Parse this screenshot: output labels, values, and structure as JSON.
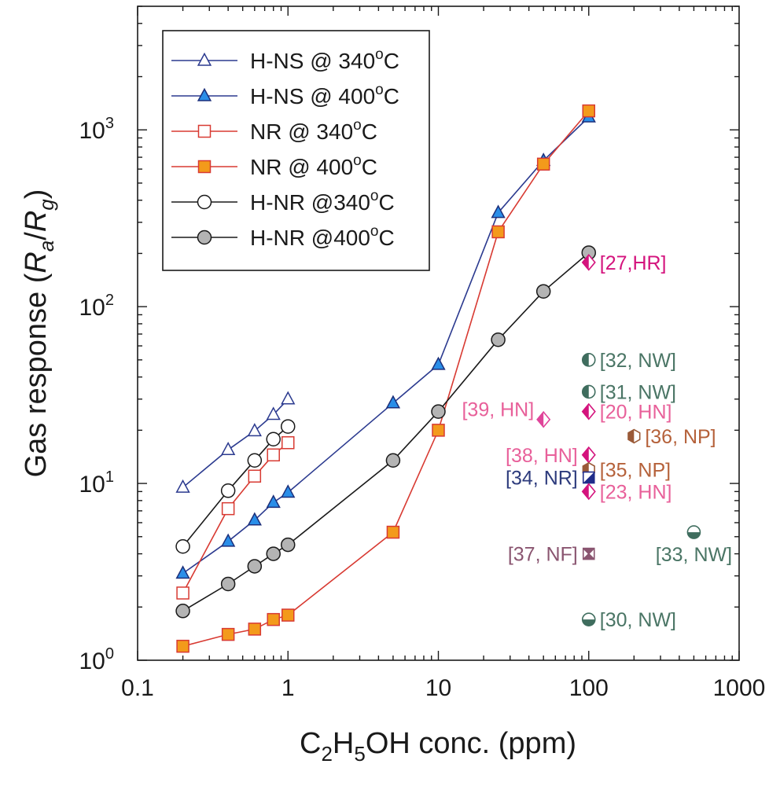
{
  "chart_data": {
    "type": "scatter",
    "xscale": "log",
    "yscale": "log",
    "xlim": [
      0.1,
      1000
    ],
    "ylim": [
      1,
      5000
    ],
    "xlabel": {
      "base": "C",
      "s1": "2",
      "mid": "H",
      "s2": "5",
      "end": "OH conc. (ppm)"
    },
    "ylabel": {
      "pre": "Gas response (",
      "a": "R",
      "asub": "a",
      "slash": "/",
      "b": "R",
      "bsub": "g",
      "post": ")"
    },
    "xticks": [
      {
        "value": 0.1,
        "label": "0.1"
      },
      {
        "value": 1,
        "label": "1"
      },
      {
        "value": 10,
        "label": "10"
      },
      {
        "value": 100,
        "label": "100"
      },
      {
        "value": 1000,
        "label": "1000"
      }
    ],
    "yticks": [
      {
        "value": 1,
        "base": "10",
        "exp": "0"
      },
      {
        "value": 10,
        "base": "10",
        "exp": "1"
      },
      {
        "value": 100,
        "base": "10",
        "exp": "2"
      },
      {
        "value": 1000,
        "base": "10",
        "exp": "3"
      }
    ],
    "legend_position": "top-left",
    "series": [
      {
        "name": "H-NS @ 340°C",
        "label": {
          "main": "H-NS @ 340",
          "deg": "o",
          "unit": "C"
        },
        "marker": "triangle",
        "fill": "#ffffff",
        "stroke": "#2b3a8f",
        "line": "#2b3a8f",
        "segments": [
          [
            [
              0.2,
              9.5
            ],
            [
              0.4,
              15.5
            ],
            [
              0.6,
              19.8
            ],
            [
              0.8,
              24.5
            ],
            [
              1,
              30
            ]
          ]
        ]
      },
      {
        "name": "H-NS @ 400°C",
        "label": {
          "main": "H-NS @ 400",
          "deg": "o",
          "unit": "C"
        },
        "marker": "triangle",
        "fill": "#2a8ee8",
        "stroke": "#1c2f7a",
        "line": "#2b3a8f",
        "segments": [
          [
            [
              0.2,
              3.1
            ],
            [
              0.4,
              4.7
            ],
            [
              0.6,
              6.2
            ],
            [
              0.8,
              7.8
            ],
            [
              1,
              8.9
            ]
          ],
          [
            [
              1,
              8.9
            ],
            [
              5,
              28.5
            ],
            [
              10,
              47
            ],
            [
              25,
              340
            ],
            [
              50,
              670
            ],
            [
              100,
              1180
            ]
          ]
        ]
      },
      {
        "name": "NR @ 340°C",
        "label": {
          "main": "NR @ 340",
          "deg": "o",
          "unit": "C"
        },
        "marker": "square",
        "fill": "#ffffff",
        "stroke": "#d83a32",
        "line": "#d83a32",
        "segments": [
          [
            [
              0.2,
              2.4
            ],
            [
              0.4,
              7.2
            ],
            [
              0.6,
              11
            ],
            [
              0.8,
              14.5
            ],
            [
              1,
              17
            ]
          ]
        ]
      },
      {
        "name": "NR @ 400°C",
        "label": {
          "main": "NR @ 400",
          "deg": "o",
          "unit": "C"
        },
        "marker": "square",
        "fill": "#f39a1b",
        "stroke": "#d83a32",
        "line": "#d83a32",
        "segments": [
          [
            [
              0.2,
              1.2
            ],
            [
              0.4,
              1.4
            ],
            [
              0.6,
              1.5
            ],
            [
              0.8,
              1.7
            ],
            [
              1,
              1.8
            ],
            [
              5,
              5.3
            ],
            [
              10,
              20
            ],
            [
              25,
              265
            ],
            [
              50,
              640
            ],
            [
              100,
              1280
            ]
          ]
        ]
      },
      {
        "name": "H-NR @340°C",
        "label": {
          "main": "H-NR @340",
          "deg": "o",
          "unit": "C"
        },
        "marker": "circle",
        "fill": "#ffffff",
        "stroke": "#1a1a1a",
        "line": "#1a1a1a",
        "segments": [
          [
            [
              0.2,
              4.4
            ],
            [
              0.4,
              9.1
            ],
            [
              0.6,
              13.5
            ],
            [
              0.8,
              17.8
            ],
            [
              1,
              21
            ]
          ]
        ]
      },
      {
        "name": "H-NR @400°C",
        "label": {
          "main": "H-NR @400",
          "deg": "o",
          "unit": "C"
        },
        "marker": "circle",
        "fill": "#b4b4b4",
        "stroke": "#1a1a1a",
        "line": "#1a1a1a",
        "segments": [
          [
            [
              0.2,
              1.9
            ],
            [
              0.4,
              2.7
            ],
            [
              0.6,
              3.4
            ],
            [
              0.8,
              4.0
            ],
            [
              1,
              4.5
            ],
            [
              5,
              13.5
            ],
            [
              10,
              25.5
            ],
            [
              25,
              65
            ],
            [
              50,
              122
            ],
            [
              100,
              202
            ]
          ]
        ]
      }
    ],
    "annotations": [
      {
        "ref": "[27,HR]",
        "x": 100,
        "y": 178,
        "marker": "diamond-half",
        "color": "#d4137d",
        "text_color": "#d4137d",
        "label_side": "right"
      },
      {
        "ref": "[32, NW]",
        "x": 100,
        "y": 50,
        "marker": "circle-half-v",
        "color": "#3f6d5e",
        "text_color": "#4a7565",
        "label_side": "right"
      },
      {
        "ref": "[31, NW]",
        "x": 100,
        "y": 33,
        "marker": "circle-half-v",
        "color": "#3f6d5e",
        "text_color": "#4a7565",
        "label_side": "right"
      },
      {
        "ref": "[39, HN]",
        "x": 50,
        "y": 23,
        "marker": "diamond-half",
        "color": "#e0449a",
        "text_color": "#e8609a",
        "label_side": "above-left"
      },
      {
        "ref": "[20, HN]",
        "x": 100,
        "y": 25.5,
        "marker": "diamond-half",
        "color": "#d4137d",
        "text_color": "#e8609a",
        "label_side": "right"
      },
      {
        "ref": "[36, NP]",
        "x": 200,
        "y": 18.5,
        "marker": "hexagon-half",
        "color": "#9a5a38",
        "text_color": "#b5613a",
        "label_side": "right"
      },
      {
        "ref": "[38, HN]",
        "x": 100,
        "y": 14.5,
        "marker": "diamond-half",
        "color": "#d4137d",
        "text_color": "#e8609a",
        "label_side": "left"
      },
      {
        "ref": "[35, NP]",
        "x": 100,
        "y": 12,
        "marker": "hexagon-half",
        "color": "#9a5a38",
        "text_color": "#b5613a",
        "label_side": "right"
      },
      {
        "ref": "[34, NR]",
        "x": 100,
        "y": 10.8,
        "marker": "square-half",
        "color": "#1f2c8a",
        "text_color": "#2d3b7c",
        "label_side": "left"
      },
      {
        "ref": "[23, HN]",
        "x": 100,
        "y": 9.0,
        "marker": "diamond-half",
        "color": "#d4137d",
        "text_color": "#e8609a",
        "label_side": "right"
      },
      {
        "ref": "[33, NW]",
        "x": 500,
        "y": 5.3,
        "marker": "circle-half-h",
        "color": "#3f6d5e",
        "text_color": "#4a7565",
        "label_side": "below"
      },
      {
        "ref": "[37, NF]",
        "x": 100,
        "y": 4.0,
        "marker": "square-x",
        "color": "#8a5570",
        "text_color": "#8a5570",
        "label_side": "left"
      },
      {
        "ref": "[30, NW]",
        "x": 100,
        "y": 1.7,
        "marker": "circle-half-h",
        "color": "#3f6d5e",
        "text_color": "#4a7565",
        "label_side": "right"
      }
    ]
  }
}
